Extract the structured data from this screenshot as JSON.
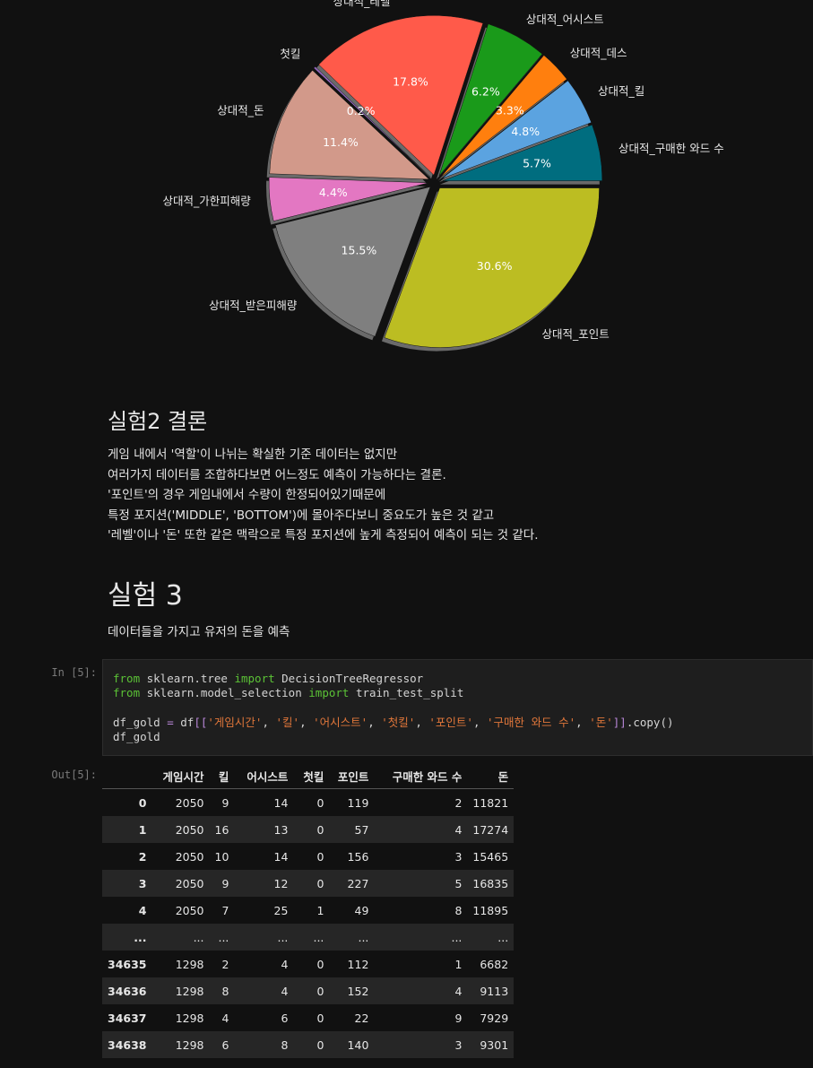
{
  "chart_data": {
    "type": "pie",
    "slices": [
      {
        "label": "상대적_포인트",
        "pct_label": "30.6%",
        "value": 30.6,
        "color": "#bcbd22"
      },
      {
        "label": "상대적_받은피해량",
        "pct_label": "15.5%",
        "value": 15.5,
        "color": "#7f7f7f"
      },
      {
        "label": "상대적_가한피해량",
        "pct_label": "4.4%",
        "value": 4.4,
        "color": "#e377c2"
      },
      {
        "label": "상대적_돈",
        "pct_label": "11.4%",
        "value": 11.4,
        "color": "#d2998a"
      },
      {
        "label": "첫킬",
        "pct_label": "0.2%",
        "value": 0.2,
        "color": "#9467bd"
      },
      {
        "label": "상대적_레벨",
        "pct_label": "17.8%",
        "value": 17.8,
        "color": "#ff5a4a"
      },
      {
        "label": "상대적_어시스트",
        "pct_label": "6.2%",
        "value": 6.2,
        "color": "#1a9a1a"
      },
      {
        "label": "상대적_데스",
        "pct_label": "3.3%",
        "value": 3.3,
        "color": "#ff7f0e"
      },
      {
        "label": "상대적_킬",
        "pct_label": "4.8%",
        "value": 4.8,
        "color": "#5ba3e0"
      },
      {
        "label": "상대적_구매한 와드 수",
        "pct_label": "5.7%",
        "value": 5.7,
        "color": "#006d7f"
      }
    ]
  },
  "conclusion2": {
    "title": "실험2 결론",
    "lines": [
      "게임 내에서 '역할'이 나뉘는 확실한 기준 데이터는 없지만",
      "여러가지 데이터를 조합하다보면 어느정도 예측이 가능하다는 결론.",
      "'포인트'의 경우 게임내에서 수량이 한정되어있기때문에",
      "특정 포지션('MIDDLE', 'BOTTOM')에 몰아주다보니 중요도가 높은 것 같고",
      "'레벨'이나 '돈' 또한 같은 맥락으로 특정 포지션에 높게 측정되어 예측이 되는 것 같다."
    ]
  },
  "experiment3": {
    "title": "실험 3",
    "desc": "데이터들을 가지고 유저의 돈을 예측"
  },
  "code_cell": {
    "in_prompt": "In [5]:",
    "out_prompt": "Out[5]:"
  },
  "table": {
    "columns": [
      "",
      "게임시간",
      "킬",
      "어시스트",
      "첫킬",
      "포인트",
      "구매한 와드 수",
      "돈"
    ],
    "rows": [
      [
        "0",
        "2050",
        "9",
        "14",
        "0",
        "119",
        "2",
        "11821"
      ],
      [
        "1",
        "2050",
        "16",
        "13",
        "0",
        "57",
        "4",
        "17274"
      ],
      [
        "2",
        "2050",
        "10",
        "14",
        "0",
        "156",
        "3",
        "15465"
      ],
      [
        "3",
        "2050",
        "9",
        "12",
        "0",
        "227",
        "5",
        "16835"
      ],
      [
        "4",
        "2050",
        "7",
        "25",
        "1",
        "49",
        "8",
        "11895"
      ],
      [
        "...",
        "...",
        "...",
        "...",
        "...",
        "...",
        "...",
        "..."
      ],
      [
        "34635",
        "1298",
        "2",
        "4",
        "0",
        "112",
        "1",
        "6682"
      ],
      [
        "34636",
        "1298",
        "8",
        "4",
        "0",
        "152",
        "4",
        "9113"
      ],
      [
        "34637",
        "1298",
        "4",
        "6",
        "0",
        "22",
        "9",
        "7929"
      ],
      [
        "34638",
        "1298",
        "6",
        "8",
        "0",
        "140",
        "3",
        "9301"
      ]
    ]
  }
}
